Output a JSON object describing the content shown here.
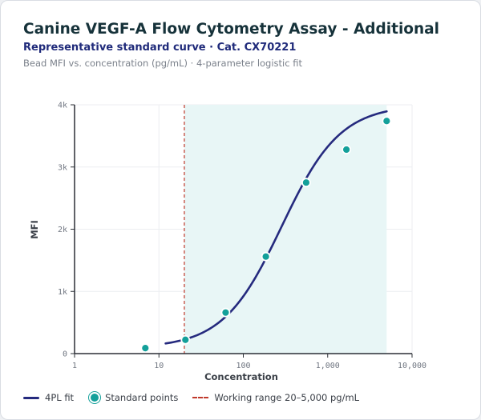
{
  "header": {
    "title": "Canine VEGF-A Flow Cytometry Assay - Additional",
    "subtitle": "Representative standard curve · Cat. CX70221",
    "caption": "Bead MFI vs. concentration (pg/mL) · 4-parameter logistic fit"
  },
  "colors": {
    "fit_line": "#252a7e",
    "points": "#13a09a",
    "range_line": "#c0392b",
    "range_band": "#e8f6f6"
  },
  "chart_data": {
    "type": "scatter",
    "title": "",
    "xlabel": "Concentration",
    "ylabel": "MFI",
    "xscale": "log",
    "xlim": [
      1,
      10000
    ],
    "ylim": [
      0,
      4000
    ],
    "grid": true,
    "xticks": [
      1,
      10,
      100,
      1000,
      10000
    ],
    "xtick_labels": [
      "1",
      "10",
      "100",
      "1,000",
      "10,000"
    ],
    "yticks": [
      0,
      1000,
      2000,
      3000,
      4000
    ],
    "ytick_labels": [
      "0",
      "1k",
      "2k",
      "3k",
      "4k"
    ],
    "points": {
      "name": "Standard points",
      "x": [
        6.9,
        20.6,
        61.7,
        185,
        556,
        1667,
        5000
      ],
      "y": [
        88,
        222,
        660,
        1560,
        2750,
        3280,
        3740
      ]
    },
    "fit": {
      "name": "4PL fit",
      "model": "4PL",
      "x_range": [
        12,
        5000
      ],
      "params": {
        "bottom": 90,
        "top": 4000,
        "ec50": 285,
        "hill": 1.25
      }
    },
    "working_range": {
      "label": "Working range 20–5,000 pg/mL",
      "from": 20,
      "to": 5000
    },
    "legend": {
      "position": "bottom",
      "items": [
        "4PL fit",
        "Standard points",
        "Working range 20–5,000 pg/mL"
      ]
    }
  }
}
